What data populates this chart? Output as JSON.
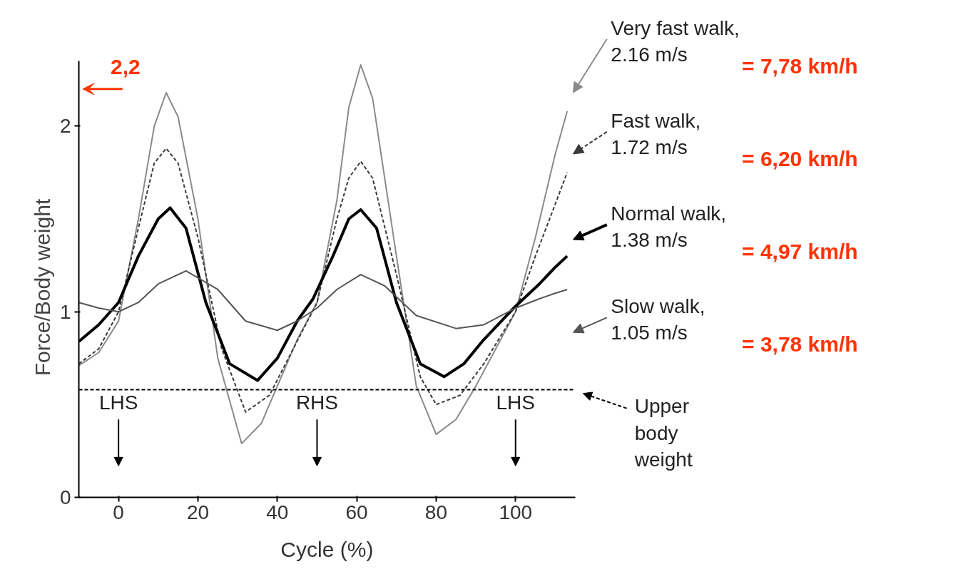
{
  "chart_data": {
    "type": "line",
    "xlabel": "Cycle (%)",
    "ylabel": "Force/Body weight",
    "xlim": [
      -10,
      115
    ],
    "ylim": [
      0,
      2.35
    ],
    "xticks": [
      0,
      20,
      40,
      60,
      80,
      100
    ],
    "yticks": [
      0,
      1,
      2
    ],
    "grid": false,
    "legend": "right",
    "marker": "none",
    "series": [
      {
        "name": "Very fast walk, 2.16 m/s",
        "color": "#8a8a8a",
        "line_style": "solid",
        "x": [
          -10,
          -5,
          0,
          5,
          9,
          12,
          15,
          20,
          25,
          31,
          36,
          40,
          45,
          50,
          55,
          58,
          61,
          64,
          70,
          75,
          80,
          85,
          90,
          95,
          100,
          105,
          110,
          113
        ],
        "values": [
          0.71,
          0.78,
          0.95,
          1.5,
          2.0,
          2.18,
          2.05,
          1.5,
          0.75,
          0.29,
          0.4,
          0.6,
          0.85,
          1.05,
          1.6,
          2.1,
          2.33,
          2.15,
          1.3,
          0.6,
          0.34,
          0.42,
          0.6,
          0.8,
          1.0,
          1.4,
          1.85,
          2.08
        ]
      },
      {
        "name": "Fast walk, 1.72 m/s",
        "color": "#3a3a3a",
        "line_style": "dashed",
        "x": [
          -10,
          -5,
          0,
          5,
          9,
          12,
          15,
          20,
          26,
          32,
          38,
          44,
          50,
          55,
          58,
          61,
          64,
          70,
          76,
          80,
          86,
          92,
          100,
          105,
          110,
          113
        ],
        "values": [
          0.72,
          0.8,
          1.0,
          1.45,
          1.8,
          1.88,
          1.8,
          1.4,
          0.8,
          0.46,
          0.55,
          0.8,
          1.05,
          1.5,
          1.72,
          1.81,
          1.72,
          1.2,
          0.65,
          0.5,
          0.55,
          0.72,
          1.0,
          1.3,
          1.58,
          1.75
        ]
      },
      {
        "name": "Normal walk, 1.38 m/s",
        "color": "#000000",
        "line_style": "solid",
        "x": [
          -10,
          -5,
          0,
          5,
          10,
          13,
          17,
          22,
          28,
          35,
          40,
          45,
          49,
          54,
          58,
          61,
          65,
          70,
          76,
          82,
          87,
          92,
          100,
          106,
          110,
          113
        ],
        "values": [
          0.84,
          0.93,
          1.05,
          1.3,
          1.5,
          1.56,
          1.45,
          1.05,
          0.72,
          0.63,
          0.75,
          0.95,
          1.07,
          1.3,
          1.5,
          1.55,
          1.45,
          1.05,
          0.72,
          0.65,
          0.72,
          0.85,
          1.03,
          1.15,
          1.24,
          1.3
        ]
      },
      {
        "name": "Slow walk, 1.05 m/s",
        "color": "#555555",
        "line_style": "solid",
        "x": [
          -10,
          -5,
          0,
          5,
          10,
          17,
          25,
          32,
          40,
          45,
          50,
          55,
          61,
          67,
          75,
          85,
          92,
          100,
          106,
          110,
          113
        ],
        "values": [
          1.05,
          1.02,
          1.0,
          1.05,
          1.15,
          1.22,
          1.12,
          0.95,
          0.9,
          0.95,
          1.02,
          1.12,
          1.2,
          1.14,
          0.98,
          0.91,
          0.93,
          1.02,
          1.07,
          1.1,
          1.12
        ]
      }
    ],
    "ref_lines": [
      {
        "axis": "y",
        "value": 0.58,
        "label": "Upper body weight",
        "color": "#000000",
        "line_style": "dashed"
      }
    ],
    "annotations": [
      "= 7,78 km/h",
      "= 6,20 km/h",
      "= 4,97 km/h",
      "= 3,78 km/h",
      "2,2",
      "LHS",
      "RHS",
      "LHS"
    ]
  }
}
